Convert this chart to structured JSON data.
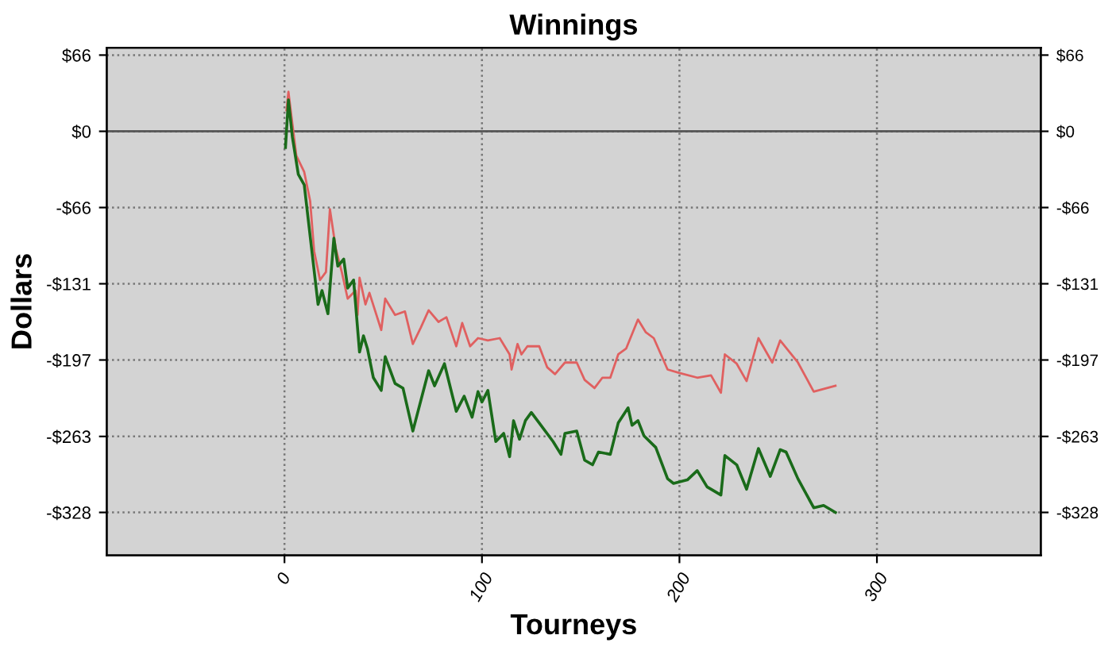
{
  "chart_data": {
    "type": "line",
    "title": "Winnings",
    "xlabel": "Tourneys",
    "ylabel": "Dollars",
    "xlim": [
      -90,
      383
    ],
    "xticks": [
      0,
      100,
      200,
      300
    ],
    "ylim": [
      -365,
      72
    ],
    "yticks": [
      {
        "value": 65.6,
        "label": "$66"
      },
      {
        "value": 0,
        "label": "$0"
      },
      {
        "value": -65.6,
        "label": "-$66"
      },
      {
        "value": -131.2,
        "label": "-$131"
      },
      {
        "value": -196.8,
        "label": "-$197"
      },
      {
        "value": -262.6,
        "label": "-$263"
      },
      {
        "value": -328,
        "label": "-$328"
      }
    ],
    "y2lim": [
      -365,
      72
    ],
    "y2ticks": [
      {
        "value": 65.6,
        "label": "$66"
      },
      {
        "value": 0,
        "label": "$0"
      },
      {
        "value": -65.6,
        "label": "-$66"
      },
      {
        "value": -131.2,
        "label": "-$131"
      },
      {
        "value": -196.8,
        "label": "-$197"
      },
      {
        "value": -262.6,
        "label": "-$263"
      },
      {
        "value": -328,
        "label": "-$328"
      }
    ],
    "grid": true,
    "marker": "none",
    "line_style": "solid",
    "legend": false,
    "ref_lines": [
      {
        "axis": "y",
        "value": 0,
        "color": "#555555",
        "line_style": "solid"
      }
    ],
    "series": [
      {
        "color": "#e06060",
        "x": [
          1,
          2,
          6,
          10,
          13,
          15,
          18,
          21,
          23,
          26,
          29,
          32,
          36,
          37,
          38,
          41,
          43,
          49,
          51,
          56,
          61,
          65,
          69,
          73,
          78,
          82,
          87,
          90,
          94,
          98,
          103,
          109,
          114,
          115,
          118,
          120,
          123,
          129,
          133,
          137,
          142,
          148,
          152,
          157,
          161,
          165,
          169,
          173,
          179,
          183,
          187,
          194,
          200,
          209,
          216,
          221,
          223,
          229,
          234,
          240,
          247,
          251,
          260,
          268,
          279
        ],
        "values": [
          18,
          34,
          -21,
          -35,
          -60,
          -103,
          -128,
          -121,
          -67,
          -101,
          -121,
          -144,
          -137,
          -158,
          -126,
          -149,
          -139,
          -171,
          -144,
          -158,
          -155,
          -183,
          -169,
          -154,
          -164,
          -160,
          -185,
          -165,
          -185,
          -178,
          -180,
          -178,
          -192,
          -205,
          -183,
          -192,
          -185,
          -185,
          -203,
          -209,
          -199,
          -199,
          -214,
          -221,
          -212,
          -212,
          -192,
          -187,
          -162,
          -173,
          -178,
          -205,
          -208,
          -212,
          -210,
          -225,
          -192,
          -200,
          -215,
          -178,
          -199,
          -180,
          -199,
          -224,
          -219
        ]
      },
      {
        "color": "#1a6b1a",
        "x": [
          0.5,
          2,
          4,
          7,
          10,
          14,
          17,
          19,
          22,
          25,
          27,
          30,
          32,
          35,
          38,
          40,
          42,
          45,
          49,
          51,
          56,
          60,
          65,
          73,
          76,
          81,
          87,
          91,
          95,
          98,
          100,
          103,
          107,
          111,
          114,
          116,
          119,
          122,
          125,
          129,
          136,
          140,
          142,
          148,
          152,
          156,
          159,
          165,
          169,
          174,
          176,
          179,
          182,
          188,
          194,
          197,
          204,
          209,
          214,
          221,
          223,
          229,
          234,
          240,
          246,
          251,
          254,
          260,
          268,
          273,
          279
        ],
        "values": [
          -14,
          27,
          -5,
          -37,
          -46,
          -105,
          -149,
          -137,
          -157,
          -92,
          -116,
          -110,
          -135,
          -128,
          -190,
          -176,
          -187,
          -212,
          -223,
          -194,
          -217,
          -221,
          -258,
          -206,
          -219,
          -200,
          -241,
          -228,
          -246,
          -224,
          -233,
          -223,
          -267,
          -260,
          -280,
          -249,
          -265,
          -249,
          -242,
          -251,
          -267,
          -278,
          -260,
          -258,
          -283,
          -287,
          -276,
          -278,
          -251,
          -238,
          -253,
          -249,
          -262,
          -272,
          -299,
          -303,
          -300,
          -292,
          -306,
          -313,
          -279,
          -287,
          -308,
          -273,
          -297,
          -274,
          -276,
          -299,
          -324,
          -322,
          -328
        ]
      }
    ]
  }
}
